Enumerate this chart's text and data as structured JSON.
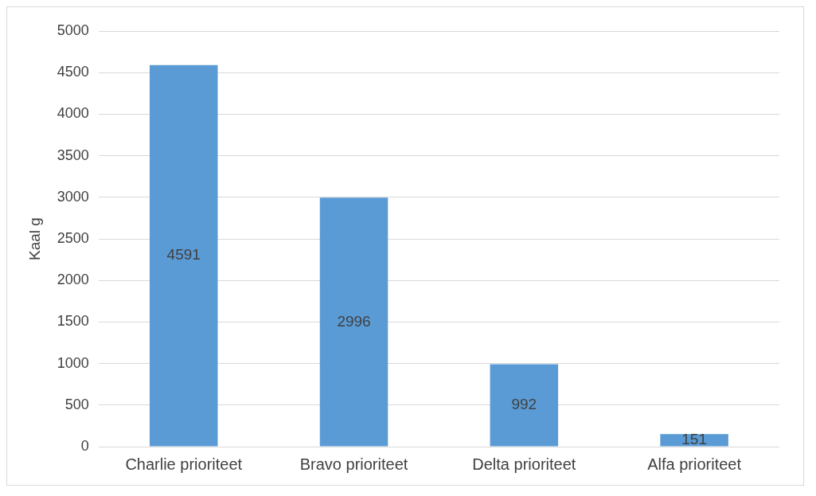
{
  "chart_data": {
    "type": "bar",
    "ylabel": "Kaal g",
    "categories": [
      "Charlie prioriteet",
      "Bravo prioriteet",
      "Delta prioriteet",
      "Alfa prioriteet"
    ],
    "values": [
      4591,
      2996,
      992,
      151
    ],
    "color": "#5b9bd5",
    "ylim": [
      0,
      5000
    ],
    "yticks": [
      0,
      500,
      1000,
      1500,
      2000,
      2500,
      3000,
      3500,
      4000,
      4500,
      5000
    ],
    "grid": "y",
    "data_labels": true,
    "legend": false
  }
}
